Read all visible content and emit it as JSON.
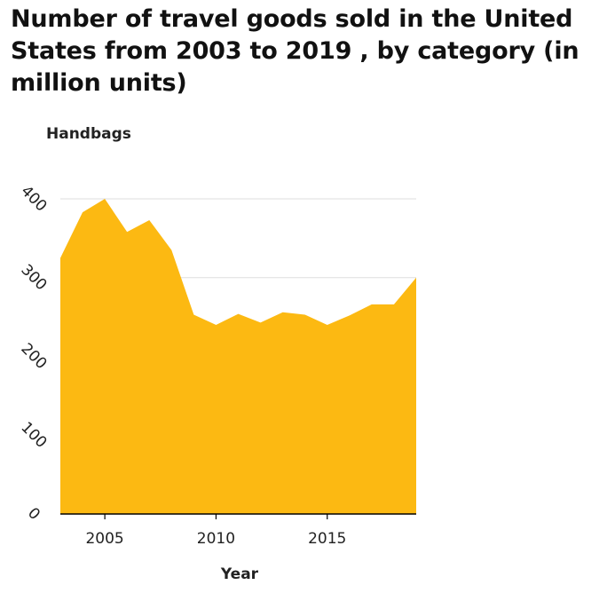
{
  "chart_data": {
    "type": "area",
    "title": "Number of travel goods sold in the United States from 2003 to 2019 , by category (in million units)",
    "ylabel": "Handbags",
    "xlabel": "Year",
    "x": [
      2003,
      2004,
      2005,
      2006,
      2007,
      2008,
      2009,
      2010,
      2011,
      2012,
      2013,
      2014,
      2015,
      2016,
      2017,
      2018,
      2019
    ],
    "series": [
      {
        "values": [
          325,
          383,
          400,
          358,
          373,
          335,
          253,
          240,
          254,
          243,
          256,
          253,
          240,
          252,
          266,
          266,
          300
        ]
      }
    ],
    "xlim": [
      2003,
      2019
    ],
    "ylim": [
      0,
      400
    ],
    "xticks": [
      2005,
      2010,
      2015
    ],
    "yticks": [
      0,
      100,
      200,
      300,
      400
    ],
    "grid": "horizontal",
    "fill_color": "#fcb912",
    "grid_color": "#dddddd",
    "axis_color": "#000000"
  }
}
